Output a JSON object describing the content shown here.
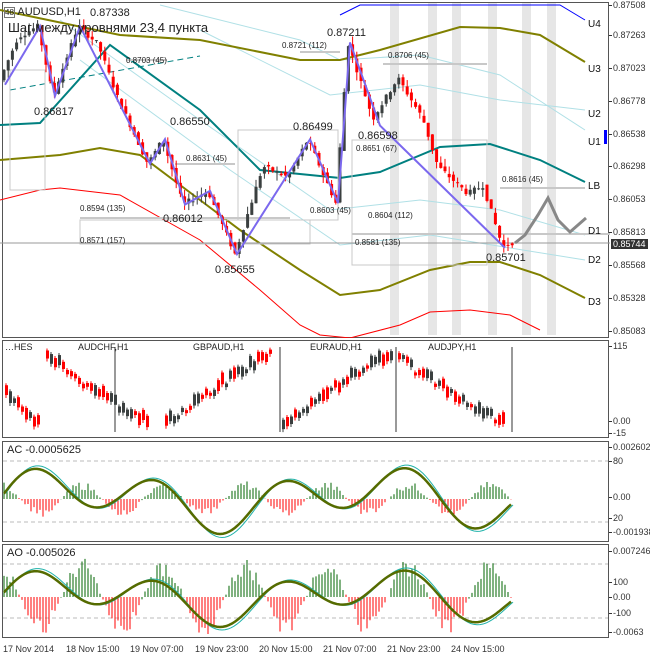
{
  "main": {
    "symbol_title": "AUDUSD,H1",
    "subtitle": "Шаг между уровнями 23,4 пункта",
    "price_axis": [
      "0.87508",
      "0.87263",
      "0.87023",
      "0.86778",
      "0.86538",
      "0.86298",
      "0.86053",
      "0.85813",
      "0.85568",
      "0.85328",
      "0.85083"
    ],
    "current_price": "0.85744",
    "levels": [
      "U4",
      "U3",
      "U2",
      "U1",
      "LB",
      "D1",
      "D2",
      "D3"
    ],
    "zigzag_labels": [
      "0.87338",
      "0.86817",
      "0.86550",
      "0.86012",
      "0.85655",
      "0.86499",
      "0.87211",
      "0.86598",
      "0.85701"
    ],
    "fib_labels": [
      "0.8703 (45)",
      "0.8721 (112)",
      "0.8706 (45)",
      "0.8631 (45)",
      "0.8651 (67)",
      "0.8594 (135)",
      "0.8571 (157)",
      "0.8603 (45)",
      "0.8604 (112)",
      "0.8581 (135)",
      "0.8616 (45)"
    ],
    "price_path": [
      [
        0,
        0.869
      ],
      [
        20,
        0.8725
      ],
      [
        40,
        0.8733
      ],
      [
        55,
        0.86817
      ],
      [
        80,
        0.8733
      ],
      [
        100,
        0.872
      ],
      [
        120,
        0.868
      ],
      [
        150,
        0.8632
      ],
      [
        165,
        0.865
      ],
      [
        185,
        0.8602
      ],
      [
        210,
        0.8612
      ],
      [
        237,
        0.85655
      ],
      [
        265,
        0.863
      ],
      [
        290,
        0.8622
      ],
      [
        310,
        0.86499
      ],
      [
        338,
        0.8603
      ],
      [
        350,
        0.87211
      ],
      [
        375,
        0.8665
      ],
      [
        400,
        0.8695
      ],
      [
        425,
        0.8665
      ],
      [
        440,
        0.863
      ],
      [
        470,
        0.861
      ],
      [
        485,
        0.8616
      ],
      [
        505,
        0.85701
      ],
      [
        513,
        0.8574
      ]
    ],
    "colors": {
      "bull": "#3a3f3f",
      "bear": "#ff0000",
      "zigzag": "#7b68ee",
      "lb": "#008080",
      "band": "#808000",
      "outer": "#ff0000",
      "upper": "#0000ff"
    }
  },
  "basket": {
    "label_first": "…HES",
    "pairs": [
      "AUDCHF,H1",
      "GBPAUD,H1",
      "EURAUD,H1",
      "AUDJPY,H1"
    ],
    "axis": [
      "115",
      "0.00",
      "-15"
    ]
  },
  "ac": {
    "label": "AC -0.0005625",
    "axis": [
      "0.002602",
      "80",
      "0.00",
      "20",
      "-0.001938"
    ]
  },
  "ao": {
    "label": "AO -0.005026",
    "axis": [
      "0.007246",
      "100",
      "0.00",
      "-100",
      "-0.0063"
    ]
  },
  "time_axis": [
    "17 Nov 2014",
    "18 Nov 15:00",
    "19 Nov 07:00",
    "19 Nov 23:00",
    "20 Nov 15:00",
    "21 Nov 07:00",
    "21 Nov 23:00",
    "24 Nov 15:00"
  ]
}
